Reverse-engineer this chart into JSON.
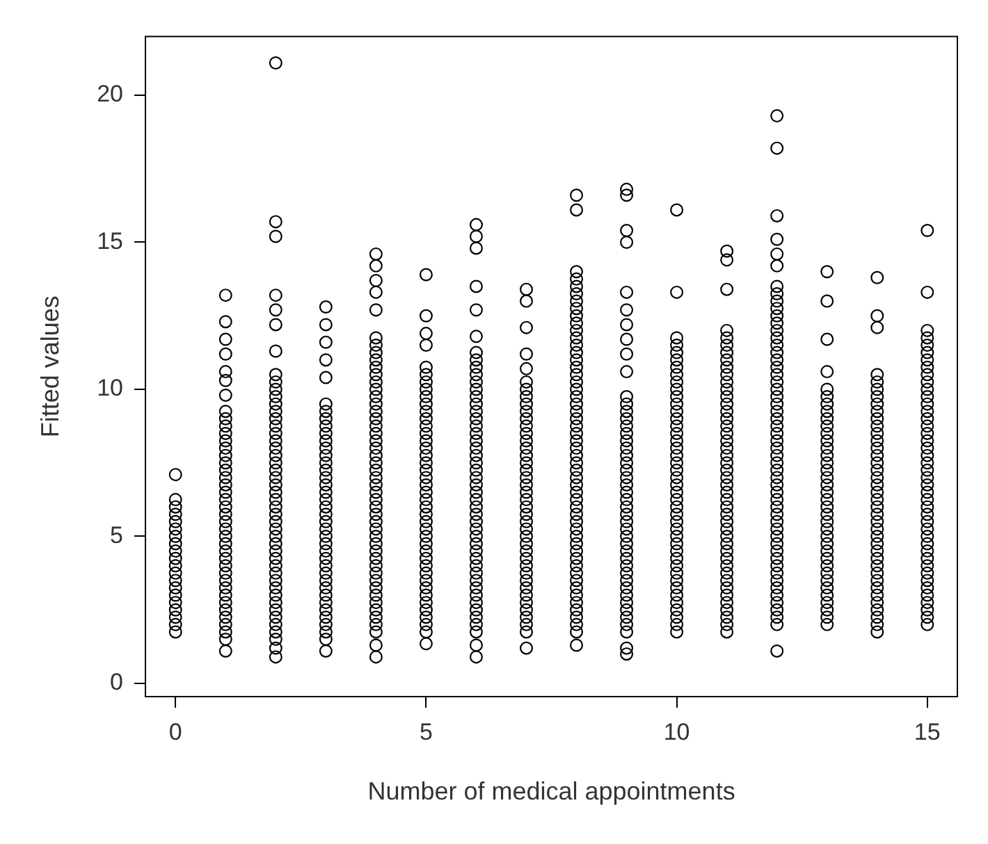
{
  "chart_data": {
    "type": "scatter",
    "xlabel": "Number of medical appointments",
    "ylabel": "Fitted values",
    "xlim": [
      -0.6,
      15.6
    ],
    "ylim": [
      -0.45,
      22
    ],
    "xticks": [
      0,
      5,
      10,
      15
    ],
    "yticks": [
      0,
      5,
      10,
      15,
      20
    ],
    "grid": false,
    "marker": "circle",
    "series": [
      {
        "color": "#000000",
        "x": [
          0,
          0,
          0,
          0,
          0,
          0,
          0,
          0,
          0,
          0,
          0,
          0,
          0,
          0,
          0,
          0,
          0,
          0,
          0,
          0
        ],
        "values": [
          1.75,
          2,
          2.25,
          2.5,
          2.75,
          3,
          3.25,
          3.5,
          3.75,
          4,
          4.25,
          4.5,
          4.75,
          5,
          5.25,
          5.5,
          5.75,
          6,
          6.25,
          7.1
        ]
      },
      {
        "color": "#000000",
        "x": [
          1,
          1,
          1,
          1,
          1,
          1,
          1,
          1,
          1,
          1,
          1,
          1,
          1,
          1,
          1,
          1,
          1,
          1,
          1,
          1,
          1,
          1,
          1,
          1,
          1,
          1,
          1,
          1,
          1,
          1,
          1,
          1,
          1,
          1,
          1,
          1,
          1,
          1,
          1,
          1
        ],
        "values": [
          1.1,
          1.5,
          1.75,
          2,
          2.25,
          2.5,
          2.75,
          3,
          3.25,
          3.5,
          3.75,
          4,
          4.25,
          4.5,
          4.75,
          5,
          5.25,
          5.5,
          5.75,
          6,
          6.25,
          6.5,
          6.75,
          7,
          7.25,
          7.5,
          7.75,
          8,
          8.25,
          8.5,
          8.75,
          9,
          9.25,
          9.8,
          10.3,
          10.6,
          11.2,
          11.7,
          12.3,
          13.2
        ]
      },
      {
        "color": "#000000",
        "x": [
          2,
          2,
          2,
          2,
          2,
          2,
          2,
          2,
          2,
          2,
          2,
          2,
          2,
          2,
          2,
          2,
          2,
          2,
          2,
          2,
          2,
          2,
          2,
          2,
          2,
          2,
          2,
          2,
          2,
          2,
          2,
          2,
          2,
          2,
          2,
          2,
          2,
          2,
          2,
          2,
          2,
          2,
          2,
          2,
          2,
          2
        ],
        "values": [
          0.9,
          1.2,
          1.5,
          1.75,
          2,
          2.25,
          2.5,
          2.75,
          3,
          3.25,
          3.5,
          3.75,
          4,
          4.25,
          4.5,
          4.75,
          5,
          5.25,
          5.5,
          5.75,
          6,
          6.25,
          6.5,
          6.75,
          7,
          7.25,
          7.5,
          7.75,
          8,
          8.25,
          8.5,
          8.75,
          9,
          9.25,
          9.5,
          9.75,
          10,
          10.25,
          10.5,
          11.3,
          12.2,
          12.7,
          13.2,
          15.2,
          15.7,
          21.1
        ]
      },
      {
        "color": "#000000",
        "x": [
          3,
          3,
          3,
          3,
          3,
          3,
          3,
          3,
          3,
          3,
          3,
          3,
          3,
          3,
          3,
          3,
          3,
          3,
          3,
          3,
          3,
          3,
          3,
          3,
          3,
          3,
          3,
          3,
          3,
          3,
          3,
          3,
          3,
          3,
          3,
          3,
          3,
          3,
          3
        ],
        "values": [
          1.1,
          1.5,
          1.75,
          2,
          2.25,
          2.5,
          2.75,
          3,
          3.25,
          3.5,
          3.75,
          4,
          4.25,
          4.5,
          4.75,
          5,
          5.25,
          5.5,
          5.75,
          6,
          6.25,
          6.5,
          6.75,
          7,
          7.25,
          7.5,
          7.75,
          8,
          8.25,
          8.5,
          8.75,
          9,
          9.25,
          9.5,
          10.4,
          11,
          11.6,
          12.2,
          12.8
        ]
      },
      {
        "color": "#000000",
        "x": [
          4,
          4,
          4,
          4,
          4,
          4,
          4,
          4,
          4,
          4,
          4,
          4,
          4,
          4,
          4,
          4,
          4,
          4,
          4,
          4,
          4,
          4,
          4,
          4,
          4,
          4,
          4,
          4,
          4,
          4,
          4,
          4,
          4,
          4,
          4,
          4,
          4,
          4,
          4,
          4,
          4,
          4,
          4,
          4,
          4,
          4,
          4,
          4
        ],
        "values": [
          0.9,
          1.3,
          1.75,
          2,
          2.25,
          2.5,
          2.75,
          3,
          3.25,
          3.5,
          3.75,
          4,
          4.25,
          4.5,
          4.75,
          5,
          5.25,
          5.5,
          5.75,
          6,
          6.25,
          6.5,
          6.75,
          7,
          7.25,
          7.5,
          7.75,
          8,
          8.25,
          8.5,
          8.75,
          9,
          9.25,
          9.5,
          9.75,
          10,
          10.25,
          10.5,
          10.75,
          11,
          11.25,
          11.5,
          11.75,
          12.7,
          13.3,
          13.7,
          14.2,
          14.6
        ]
      },
      {
        "color": "#000000",
        "x": [
          5,
          5,
          5,
          5,
          5,
          5,
          5,
          5,
          5,
          5,
          5,
          5,
          5,
          5,
          5,
          5,
          5,
          5,
          5,
          5,
          5,
          5,
          5,
          5,
          5,
          5,
          5,
          5,
          5,
          5,
          5,
          5,
          5,
          5,
          5,
          5,
          5,
          5,
          5,
          5,
          5,
          5
        ],
        "values": [
          1.35,
          1.75,
          2,
          2.25,
          2.5,
          2.75,
          3,
          3.25,
          3.5,
          3.75,
          4,
          4.25,
          4.5,
          4.75,
          5,
          5.25,
          5.5,
          5.75,
          6,
          6.25,
          6.5,
          6.75,
          7,
          7.25,
          7.5,
          7.75,
          8,
          8.25,
          8.5,
          8.75,
          9,
          9.25,
          9.5,
          9.75,
          10,
          10.25,
          10.5,
          10.75,
          11.5,
          11.9,
          12.5,
          13.9
        ]
      },
      {
        "color": "#000000",
        "x": [
          6,
          6,
          6,
          6,
          6,
          6,
          6,
          6,
          6,
          6,
          6,
          6,
          6,
          6,
          6,
          6,
          6,
          6,
          6,
          6,
          6,
          6,
          6,
          6,
          6,
          6,
          6,
          6,
          6,
          6,
          6,
          6,
          6,
          6,
          6,
          6,
          6,
          6,
          6,
          6,
          6,
          6,
          6,
          6,
          6,
          6,
          6
        ],
        "values": [
          0.9,
          1.3,
          1.75,
          2,
          2.25,
          2.5,
          2.75,
          3,
          3.25,
          3.5,
          3.75,
          4,
          4.25,
          4.5,
          4.75,
          5,
          5.25,
          5.5,
          5.75,
          6,
          6.25,
          6.5,
          6.75,
          7,
          7.25,
          7.5,
          7.75,
          8,
          8.25,
          8.5,
          8.75,
          9,
          9.25,
          9.5,
          9.75,
          10,
          10.25,
          10.5,
          10.75,
          11,
          11.25,
          11.8,
          12.7,
          13.5,
          14.8,
          15.2,
          15.6
        ]
      },
      {
        "color": "#000000",
        "x": [
          7,
          7,
          7,
          7,
          7,
          7,
          7,
          7,
          7,
          7,
          7,
          7,
          7,
          7,
          7,
          7,
          7,
          7,
          7,
          7,
          7,
          7,
          7,
          7,
          7,
          7,
          7,
          7,
          7,
          7,
          7,
          7,
          7,
          7,
          7,
          7,
          7,
          7,
          7,
          7,
          7
        ],
        "values": [
          1.2,
          1.75,
          2,
          2.25,
          2.5,
          2.75,
          3,
          3.25,
          3.5,
          3.75,
          4,
          4.25,
          4.5,
          4.75,
          5,
          5.25,
          5.5,
          5.75,
          6,
          6.25,
          6.5,
          6.75,
          7,
          7.25,
          7.5,
          7.75,
          8,
          8.25,
          8.5,
          8.75,
          9,
          9.25,
          9.5,
          9.75,
          10,
          10.25,
          10.7,
          11.2,
          12.1,
          13,
          13.4
        ]
      },
      {
        "color": "#000000",
        "x": [
          8,
          8,
          8,
          8,
          8,
          8,
          8,
          8,
          8,
          8,
          8,
          8,
          8,
          8,
          8,
          8,
          8,
          8,
          8,
          8,
          8,
          8,
          8,
          8,
          8,
          8,
          8,
          8,
          8,
          8,
          8,
          8,
          8,
          8,
          8,
          8,
          8,
          8,
          8,
          8,
          8,
          8,
          8,
          8,
          8,
          8,
          8,
          8,
          8,
          8,
          8,
          8,
          8
        ],
        "values": [
          1.3,
          1.75,
          2,
          2.25,
          2.5,
          2.75,
          3,
          3.25,
          3.5,
          3.75,
          4,
          4.25,
          4.5,
          4.75,
          5,
          5.25,
          5.5,
          5.75,
          6,
          6.25,
          6.5,
          6.75,
          7,
          7.25,
          7.5,
          7.75,
          8,
          8.25,
          8.5,
          8.75,
          9,
          9.25,
          9.5,
          9.75,
          10,
          10.25,
          10.5,
          10.75,
          11,
          11.25,
          11.5,
          11.75,
          12,
          12.25,
          12.5,
          12.75,
          13,
          13.25,
          13.5,
          13.75,
          14,
          16.1,
          16.6
        ]
      },
      {
        "color": "#000000",
        "x": [
          9,
          9,
          9,
          9,
          9,
          9,
          9,
          9,
          9,
          9,
          9,
          9,
          9,
          9,
          9,
          9,
          9,
          9,
          9,
          9,
          9,
          9,
          9,
          9,
          9,
          9,
          9,
          9,
          9,
          9,
          9,
          9,
          9,
          9,
          9,
          9,
          9,
          9,
          9,
          9,
          9,
          9,
          9,
          9,
          9
        ],
        "values": [
          1,
          1.2,
          1.75,
          2,
          2.25,
          2.5,
          2.75,
          3,
          3.25,
          3.5,
          3.75,
          4,
          4.25,
          4.5,
          4.75,
          5,
          5.25,
          5.5,
          5.75,
          6,
          6.25,
          6.5,
          6.75,
          7,
          7.25,
          7.5,
          7.75,
          8,
          8.25,
          8.5,
          8.75,
          9,
          9.25,
          9.5,
          9.75,
          10.6,
          11.2,
          11.7,
          12.2,
          12.7,
          13.3,
          15,
          15.4,
          16.6,
          16.8
        ]
      },
      {
        "color": "#000000",
        "x": [
          10,
          10,
          10,
          10,
          10,
          10,
          10,
          10,
          10,
          10,
          10,
          10,
          10,
          10,
          10,
          10,
          10,
          10,
          10,
          10,
          10,
          10,
          10,
          10,
          10,
          10,
          10,
          10,
          10,
          10,
          10,
          10,
          10,
          10,
          10,
          10,
          10,
          10,
          10,
          10,
          10,
          10,
          10
        ],
        "values": [
          1.75,
          2,
          2.25,
          2.5,
          2.75,
          3,
          3.25,
          3.5,
          3.75,
          4,
          4.25,
          4.5,
          4.75,
          5,
          5.25,
          5.5,
          5.75,
          6,
          6.25,
          6.5,
          6.75,
          7,
          7.25,
          7.5,
          7.75,
          8,
          8.25,
          8.5,
          8.75,
          9,
          9.25,
          9.5,
          9.75,
          10,
          10.25,
          10.5,
          10.75,
          11,
          11.25,
          11.5,
          11.75,
          13.3,
          16.1
        ]
      },
      {
        "color": "#000000",
        "x": [
          11,
          11,
          11,
          11,
          11,
          11,
          11,
          11,
          11,
          11,
          11,
          11,
          11,
          11,
          11,
          11,
          11,
          11,
          11,
          11,
          11,
          11,
          11,
          11,
          11,
          11,
          11,
          11,
          11,
          11,
          11,
          11,
          11,
          11,
          11,
          11,
          11,
          11,
          11,
          11,
          11,
          11,
          11,
          11,
          11
        ],
        "values": [
          1.75,
          2,
          2.25,
          2.5,
          2.75,
          3,
          3.25,
          3.5,
          3.75,
          4,
          4.25,
          4.5,
          4.75,
          5,
          5.25,
          5.5,
          5.75,
          6,
          6.25,
          6.5,
          6.75,
          7,
          7.25,
          7.5,
          7.75,
          8,
          8.25,
          8.5,
          8.75,
          9,
          9.25,
          9.5,
          9.75,
          10,
          10.25,
          10.5,
          10.75,
          11,
          11.25,
          11.5,
          11.75,
          12,
          13.4,
          14.4,
          14.7
        ]
      },
      {
        "color": "#000000",
        "x": [
          12,
          12,
          12,
          12,
          12,
          12,
          12,
          12,
          12,
          12,
          12,
          12,
          12,
          12,
          12,
          12,
          12,
          12,
          12,
          12,
          12,
          12,
          12,
          12,
          12,
          12,
          12,
          12,
          12,
          12,
          12,
          12,
          12,
          12,
          12,
          12,
          12,
          12,
          12,
          12,
          12,
          12,
          12,
          12,
          12,
          12,
          12,
          12,
          12,
          12,
          12,
          12,
          12,
          12
        ],
        "values": [
          1.1,
          2,
          2.25,
          2.5,
          2.75,
          3,
          3.25,
          3.5,
          3.75,
          4,
          4.25,
          4.5,
          4.75,
          5,
          5.25,
          5.5,
          5.75,
          6,
          6.25,
          6.5,
          6.75,
          7,
          7.25,
          7.5,
          7.75,
          8,
          8.25,
          8.5,
          8.75,
          9,
          9.25,
          9.5,
          9.75,
          10,
          10.25,
          10.5,
          10.75,
          11,
          11.25,
          11.5,
          11.75,
          12,
          12.25,
          12.5,
          12.75,
          13,
          13.25,
          13.5,
          14.2,
          14.6,
          15.1,
          15.9,
          18.2,
          19.3
        ]
      },
      {
        "color": "#000000",
        "x": [
          13,
          13,
          13,
          13,
          13,
          13,
          13,
          13,
          13,
          13,
          13,
          13,
          13,
          13,
          13,
          13,
          13,
          13,
          13,
          13,
          13,
          13,
          13,
          13,
          13,
          13,
          13,
          13,
          13,
          13,
          13,
          13,
          13,
          13,
          13,
          13,
          13
        ],
        "values": [
          2,
          2.25,
          2.5,
          2.75,
          3,
          3.25,
          3.5,
          3.75,
          4,
          4.25,
          4.5,
          4.75,
          5,
          5.25,
          5.5,
          5.75,
          6,
          6.25,
          6.5,
          6.75,
          7,
          7.25,
          7.5,
          7.75,
          8,
          8.25,
          8.5,
          8.75,
          9,
          9.25,
          9.5,
          9.75,
          10,
          10.6,
          11.7,
          13,
          14
        ]
      },
      {
        "color": "#000000",
        "x": [
          14,
          14,
          14,
          14,
          14,
          14,
          14,
          14,
          14,
          14,
          14,
          14,
          14,
          14,
          14,
          14,
          14,
          14,
          14,
          14,
          14,
          14,
          14,
          14,
          14,
          14,
          14,
          14,
          14,
          14,
          14,
          14,
          14,
          14,
          14,
          14,
          14,
          14,
          14
        ],
        "values": [
          1.75,
          2,
          2.25,
          2.5,
          2.75,
          3,
          3.25,
          3.5,
          3.75,
          4,
          4.25,
          4.5,
          4.75,
          5,
          5.25,
          5.5,
          5.75,
          6,
          6.25,
          6.5,
          6.75,
          7,
          7.25,
          7.5,
          7.75,
          8,
          8.25,
          8.5,
          8.75,
          9,
          9.25,
          9.5,
          9.75,
          10,
          10.25,
          10.5,
          12.1,
          12.5,
          13.8
        ]
      },
      {
        "color": "#000000",
        "x": [
          15,
          15,
          15,
          15,
          15,
          15,
          15,
          15,
          15,
          15,
          15,
          15,
          15,
          15,
          15,
          15,
          15,
          15,
          15,
          15,
          15,
          15,
          15,
          15,
          15,
          15,
          15,
          15,
          15,
          15,
          15,
          15,
          15,
          15,
          15,
          15,
          15,
          15,
          15,
          15,
          15,
          15,
          15
        ],
        "values": [
          2,
          2.25,
          2.5,
          2.75,
          3,
          3.25,
          3.5,
          3.75,
          4,
          4.25,
          4.5,
          4.75,
          5,
          5.25,
          5.5,
          5.75,
          6,
          6.25,
          6.5,
          6.75,
          7,
          7.25,
          7.5,
          7.75,
          8,
          8.25,
          8.5,
          8.75,
          9,
          9.25,
          9.5,
          9.75,
          10,
          10.25,
          10.5,
          10.75,
          11,
          11.25,
          11.5,
          11.75,
          12,
          13.3,
          15.4
        ]
      }
    ]
  }
}
